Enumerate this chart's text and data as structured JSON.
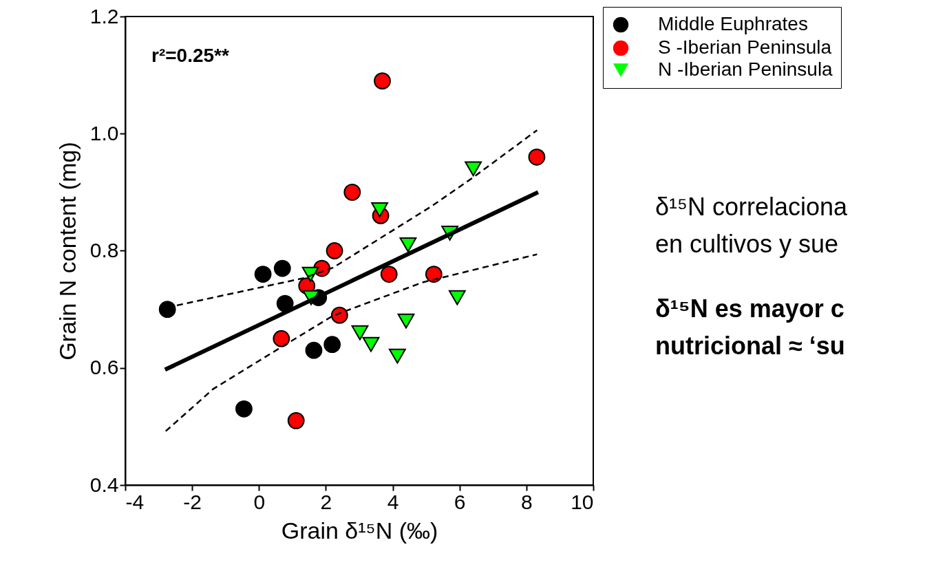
{
  "chart_data": {
    "type": "scatter",
    "xlabel": "Grain δ¹⁵N (‰)",
    "ylabel": "Grain N content (mg)",
    "xlim": [
      -4,
      10
    ],
    "xticks": [
      -4,
      -2,
      0,
      2,
      4,
      6,
      8,
      10
    ],
    "ylim": [
      0.4,
      1.2
    ],
    "yticks": [
      0.4,
      0.6,
      0.8,
      {
        "value": 1,
        "label": "1.0"
      },
      1.2
    ],
    "grid": false,
    "legend": "top right",
    "series": [
      {
        "name": "Middle Euphrates",
        "marker": "circle",
        "color": "#000000",
        "x": [
          -2.74,
          0.12,
          0.7,
          0.78,
          1.78,
          1.64,
          2.19,
          -0.45
        ],
        "values": [
          0.7,
          0.76,
          0.77,
          0.71,
          0.72,
          0.63,
          0.64,
          0.53
        ]
      },
      {
        "name": "S -Iberian Peninsula",
        "marker": "circle",
        "color": "#ff0000",
        "x": [
          2.26,
          1.88,
          1.43,
          3.89,
          5.23,
          2.41,
          0.67,
          1.11,
          3.64,
          3.69,
          2.79,
          8.31
        ],
        "values": [
          0.8,
          0.77,
          0.74,
          0.76,
          0.76,
          0.69,
          0.65,
          0.51,
          0.86,
          1.09,
          0.9,
          0.96
        ]
      },
      {
        "name": "N -Iberian Peninsula",
        "marker": "triangle",
        "color": "#00ff00",
        "x": [
          6.41,
          3.61,
          4.46,
          5.71,
          1.54,
          1.56,
          5.93,
          4.4,
          3.02,
          3.35,
          4.14
        ],
        "values": [
          0.94,
          0.87,
          0.81,
          0.83,
          0.76,
          0.72,
          0.72,
          0.68,
          0.66,
          0.64,
          0.62
        ]
      },
      {
        "type": "line",
        "line_style": "solid",
        "color": "#000000",
        "x": [
          -2.81,
          8.35
        ],
        "values": [
          0.597,
          0.9
        ]
      },
      {
        "type": "line",
        "line_style": "dashed",
        "color": "#000000",
        "x": [
          -2.74,
          -2.52,
          1.31,
          2.21,
          5.16,
          6.4,
          8.32
        ],
        "values": [
          0.7,
          0.706,
          0.753,
          0.771,
          0.876,
          0.925,
          1.006
        ]
      },
      {
        "type": "line",
        "line_style": "dashed",
        "color": "#000000",
        "x": [
          -2.79,
          -1.37,
          0.51,
          2.21,
          4.89,
          8.32
        ],
        "values": [
          0.492,
          0.564,
          0.63,
          0.689,
          0.746,
          0.794
        ]
      }
    ],
    "annotations": [
      "r²=0.25**",
      "δ¹⁵N correlaciona",
      "en cultivos y sue",
      "δ¹⁵N es mayor c",
      "nutricional ≈ ‘su"
    ]
  }
}
